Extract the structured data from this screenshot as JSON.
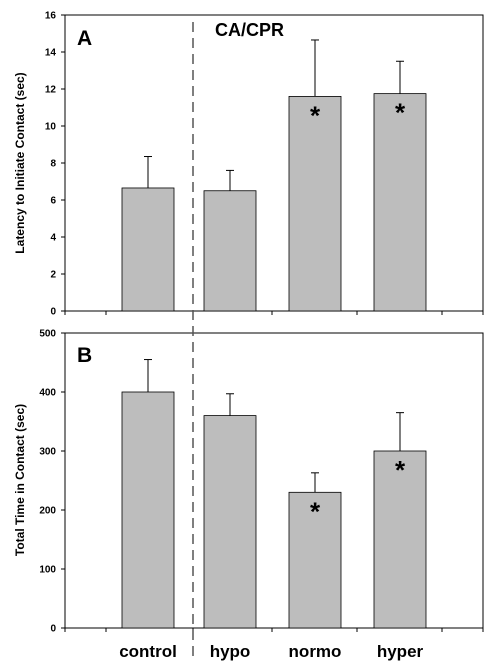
{
  "annotation": "CA/CPR",
  "colors": {
    "bar": "#bdbdbd",
    "bar_stroke": "#000000",
    "frame": "#000000",
    "divider": "#555555"
  },
  "chart_data": [
    {
      "type": "bar",
      "panel_label": "A",
      "ylabel": "Latency to Initiate Contact (sec)",
      "categories": [
        "control",
        "hypo",
        "normo",
        "hyper"
      ],
      "values": [
        6.65,
        6.5,
        11.6,
        11.75
      ],
      "error_plus": [
        1.7,
        1.1,
        3.05,
        1.75
      ],
      "significance": [
        "",
        "",
        "*",
        "*"
      ],
      "ylim": [
        0,
        16
      ],
      "yticks": [
        "0",
        "2",
        "4",
        "6",
        "8",
        "10",
        "12",
        "14",
        "16"
      ],
      "grid": false
    },
    {
      "type": "bar",
      "panel_label": "B",
      "ylabel": "Total Time in Contact (sec)",
      "categories": [
        "control",
        "hypo",
        "normo",
        "hyper"
      ],
      "values": [
        400,
        360,
        230,
        300
      ],
      "error_plus": [
        55,
        37,
        33,
        65
      ],
      "significance": [
        "",
        "",
        "*",
        "*"
      ],
      "ylim": [
        0,
        500
      ],
      "yticks": [
        "0",
        "100",
        "200",
        "300",
        "400",
        "500"
      ],
      "grid": false
    }
  ]
}
